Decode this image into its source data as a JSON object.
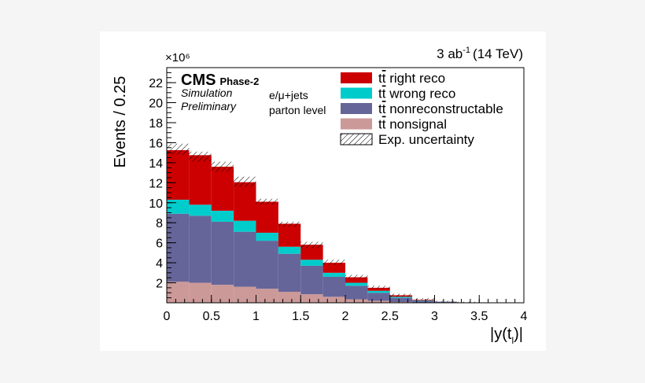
{
  "chart_data": {
    "type": "bar",
    "stacked": true,
    "lumi_label": "3 ab⁻¹ (14 TeV)",
    "lumi_value": "3 ab",
    "lumi_exponent": "-1",
    "lumi_energy": "(14 TeV)",
    "ylabel": "Events / 0.25",
    "y_multiplier": "×10⁶",
    "xlabel": "|y(t",
    "xlabel_sub": "l",
    "xlabel_end": ")|",
    "experiment": "CMS",
    "experiment_suffix": "Phase-2",
    "simulation_label": "Simulation",
    "preliminary_label": "Preliminary",
    "channel_label": "e/μ+jets",
    "level_label": "parton level",
    "xlim": [
      0,
      4
    ],
    "ylim": [
      0,
      23.5
    ],
    "x_ticks": [
      "0",
      "0.5",
      "1",
      "1.5",
      "2",
      "2.5",
      "3",
      "3.5",
      "4"
    ],
    "y_ticks": [
      "2",
      "4",
      "6",
      "8",
      "10",
      "12",
      "14",
      "16",
      "18",
      "20",
      "22"
    ],
    "bin_edges": [
      0,
      0.25,
      0.5,
      0.75,
      1.0,
      1.25,
      1.5,
      1.75,
      2.0,
      2.25,
      2.5,
      2.75,
      3.0,
      3.25,
      3.5
    ],
    "series": [
      {
        "name": "tt̄ nonsignal",
        "label_prefix": "t",
        "label_rest": " nonsignal",
        "color": "#cc9999",
        "values": [
          2.1,
          2.0,
          1.8,
          1.6,
          1.4,
          1.1,
          0.85,
          0.6,
          0.35,
          0.2,
          0.08,
          0.03,
          0.01,
          0.0
        ]
      },
      {
        "name": "tt̄ nonreconstructable",
        "label_prefix": "t",
        "label_rest": " nonreconstructable",
        "color": "#66659a",
        "values": [
          6.8,
          6.7,
          6.3,
          5.5,
          4.8,
          3.8,
          2.85,
          2.0,
          1.35,
          0.8,
          0.42,
          0.17,
          0.09,
          0.04
        ]
      },
      {
        "name": "tt̄ wrong reco",
        "label_prefix": "t",
        "label_rest": " wrong reco",
        "color": "#00cccc",
        "values": [
          1.4,
          1.1,
          1.1,
          1.1,
          0.8,
          0.7,
          0.6,
          0.4,
          0.3,
          0.2,
          0.1,
          0.04,
          0.01,
          0.0
        ]
      },
      {
        "name": "tt̄ right reco",
        "label_prefix": "t",
        "label_rest": " right reco",
        "color": "#cc0000",
        "values": [
          4.95,
          4.95,
          4.4,
          3.85,
          3.1,
          2.3,
          1.5,
          1.0,
          0.55,
          0.3,
          0.15,
          0.06,
          0.01,
          0.0
        ]
      }
    ],
    "uncertainty": {
      "name": "Exp. uncertainty",
      "upper": [
        15.9,
        15.1,
        14.1,
        12.6,
        10.4,
        8.1,
        6.1,
        4.3,
        2.8,
        1.7,
        0.9,
        0.46,
        0.2,
        0.1
      ],
      "lower": [
        14.8,
        14.1,
        13.1,
        11.6,
        9.8,
        7.6,
        5.5,
        3.8,
        2.4,
        1.4,
        0.6,
        0.3,
        0.1,
        0.0
      ]
    }
  }
}
